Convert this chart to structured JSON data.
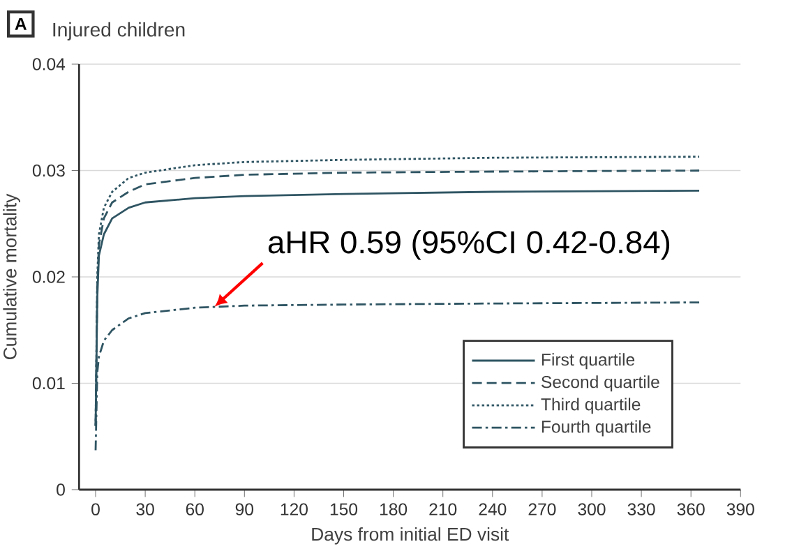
{
  "chart_data": {
    "type": "line",
    "title": "Injured children",
    "xlabel": "Days from initial ED visit",
    "ylabel": "Cumulative mortality",
    "annotations": [
      "A",
      {
        "text": "aHR 0.59 (95%CI 0.42-0.84)",
        "x": 72,
        "y": 0.0172
      }
    ],
    "x": [
      0,
      1,
      2,
      5,
      10,
      20,
      30,
      60,
      90,
      150,
      240,
      365
    ],
    "series": [
      {
        "name": "First quartile",
        "color": "#2f5563",
        "line_style": "solid",
        "values": [
          0.006,
          0.018,
          0.022,
          0.024,
          0.0255,
          0.0265,
          0.027,
          0.0274,
          0.0276,
          0.0278,
          0.028,
          0.0281
        ]
      },
      {
        "name": "Second quartile",
        "color": "#2f5563",
        "line_style": "dashed",
        "values": [
          0.006,
          0.019,
          0.023,
          0.0255,
          0.027,
          0.028,
          0.0287,
          0.0293,
          0.0296,
          0.0298,
          0.0299,
          0.03
        ]
      },
      {
        "name": "Third quartile",
        "color": "#2f5563",
        "line_style": "dotted",
        "values": [
          0.006,
          0.02,
          0.024,
          0.0265,
          0.028,
          0.0293,
          0.0298,
          0.0305,
          0.0308,
          0.031,
          0.0312,
          0.0313
        ]
      },
      {
        "name": "Fourth quartile",
        "color": "#2f5563",
        "line_style": "dashdot",
        "values": [
          0.0037,
          0.011,
          0.0125,
          0.014,
          0.015,
          0.0161,
          0.0166,
          0.0171,
          0.0173,
          0.0174,
          0.0175,
          0.0176
        ]
      }
    ],
    "xlim": [
      -10,
      390
    ],
    "ylim": [
      0,
      0.04
    ],
    "xticks": [
      0,
      30,
      60,
      90,
      120,
      150,
      180,
      210,
      240,
      270,
      300,
      330,
      360,
      390
    ],
    "yticks": [
      0,
      0.01,
      0.02,
      0.03,
      0.04
    ],
    "grid": "y",
    "legend": "bottom right"
  }
}
